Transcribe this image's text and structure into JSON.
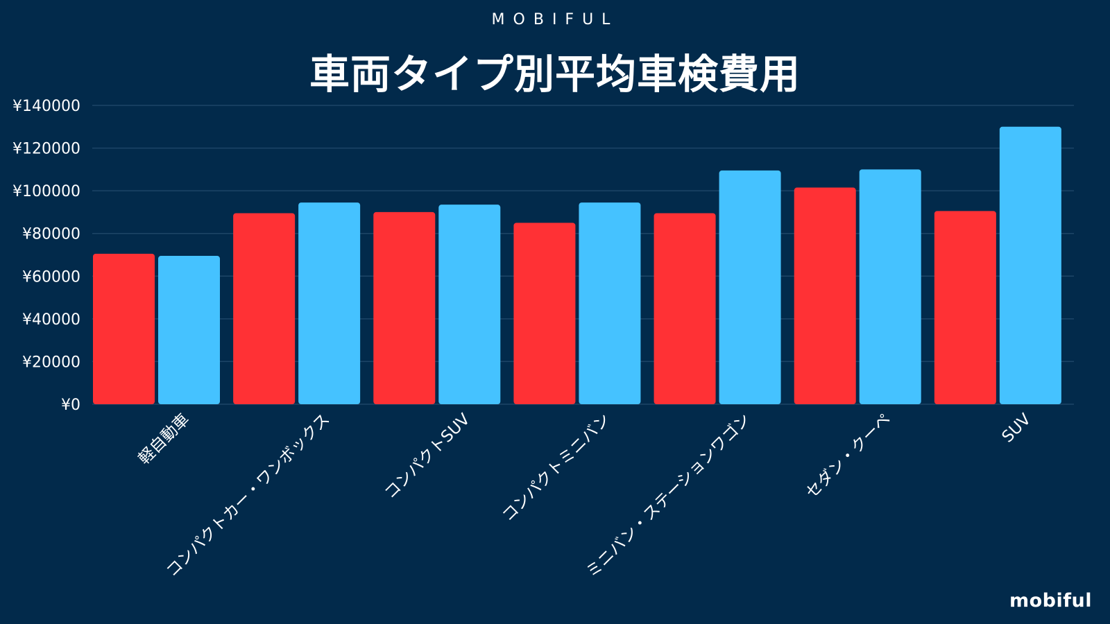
{
  "brand_top": "MOBIFUL",
  "logo_text": "mobiful",
  "colors": {
    "background": "#022a4b",
    "series_a": "#ff3135",
    "series_b": "#45c2ff",
    "gridline": "#1d4567",
    "text": "#ffffff"
  },
  "chart_data": {
    "type": "bar",
    "title": "車両タイプ別平均車検費用",
    "xlabel": "",
    "ylabel": "",
    "ylim": [
      0,
      140000
    ],
    "yticks": [
      0,
      20000,
      40000,
      60000,
      80000,
      100000,
      120000,
      140000
    ],
    "ytick_labels": [
      "¥0",
      "¥20000",
      "¥40000",
      "¥60000",
      "¥80000",
      "¥100000",
      "¥120000",
      "¥140000"
    ],
    "grid": true,
    "legend": "none",
    "categories": [
      "軽自動車",
      "コンパクトカー・ワンボックス",
      "コンパクトSUV",
      "コンパクトミニバン",
      "ミニバン・ステーションワゴン",
      "セダン・クーペ",
      "SUV"
    ],
    "series": [
      {
        "values": [
          70500,
          89500,
          90000,
          85000,
          89500,
          101500,
          90500
        ]
      },
      {
        "values": [
          69500,
          94500,
          93500,
          94500,
          109500,
          110000,
          130000
        ]
      }
    ]
  }
}
